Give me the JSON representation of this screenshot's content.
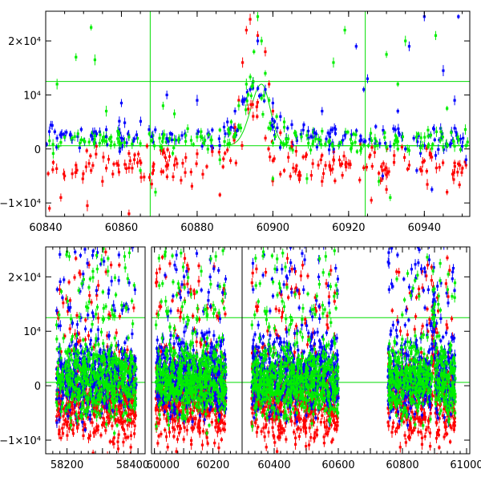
{
  "colors": {
    "red": "#ff0000",
    "green": "#00ee00",
    "blue": "#0000ff",
    "reference": "#00dd00",
    "frame": "#000000"
  },
  "chart_data": [
    {
      "type": "scatter",
      "title": "",
      "xlabel": "",
      "ylabel": "",
      "xlim": [
        60840,
        60952
      ],
      "ylim": [
        -12500,
        25500
      ],
      "x_ticks": [
        60840,
        60860,
        60880,
        60900,
        60920,
        60940
      ],
      "x_tick_labels": [
        "60840",
        "60860",
        "60880",
        "60900",
        "60920",
        "60940"
      ],
      "y_ticks": [
        -10000,
        0,
        10000,
        20000
      ],
      "y_tick_labels": [
        "−1×10⁴",
        "0",
        "10⁴",
        "2×10⁴"
      ],
      "hlines": [
        12500,
        600
      ],
      "vlines": [
        60867.6,
        60924.4
      ],
      "model_curve": {
        "peak_x": 60897,
        "peak_y": 12000,
        "base_y": 600,
        "rise_width": 4,
        "decay_width": 3.2
      },
      "series": [
        {
          "color": "red",
          "points": [
            [
              60842,
              -2500
            ],
            [
              60845,
              -5000
            ],
            [
              60848,
              -3000
            ],
            [
              60852,
              -4000
            ],
            [
              60855,
              -6000
            ],
            [
              60858,
              -2800
            ],
            [
              60862,
              -3500
            ],
            [
              60866,
              -5200
            ],
            [
              60868,
              -6500
            ],
            [
              60871,
              -4200
            ],
            [
              60874,
              -3000
            ],
            [
              60877,
              -1600
            ],
            [
              60880,
              -900
            ],
            [
              60884,
              -500
            ],
            [
              60888,
              -200
            ],
            [
              60890,
              4000
            ],
            [
              60891,
              9000
            ],
            [
              60892,
              16000
            ],
            [
              60893,
              22000
            ],
            [
              60894,
              24000
            ],
            [
              60896,
              21000
            ],
            [
              60898,
              18000
            ],
            [
              60899,
              12000
            ],
            [
              60900,
              7000
            ],
            [
              60902,
              3000
            ],
            [
              60905,
              500
            ],
            [
              60908,
              -1500
            ],
            [
              60912,
              -3000
            ],
            [
              60916,
              -2000
            ],
            [
              60920,
              -2800
            ],
            [
              60924,
              -3500
            ],
            [
              60928,
              -4500
            ],
            [
              60932,
              -2500
            ],
            [
              60936,
              -3000
            ],
            [
              60940,
              -2200
            ],
            [
              60944,
              -3400
            ],
            [
              60948,
              -2600
            ],
            [
              60951,
              -3000
            ],
            [
              60844,
              -9000
            ],
            [
              60851,
              -10500
            ],
            [
              60862,
              -12000
            ],
            [
              60886,
              -8500
            ],
            [
              60903,
              -4000
            ],
            [
              60926,
              -9500
            ],
            [
              60930,
              -7500
            ],
            [
              60946,
              -8000
            ],
            [
              60841,
              -11000
            ],
            [
              60913,
              -6000
            ]
          ]
        },
        {
          "color": "blue",
          "points": [
            [
              60843,
              2000
            ],
            [
              60847,
              1800
            ],
            [
              60852,
              2500
            ],
            [
              60856,
              2200
            ],
            [
              60860,
              2000
            ],
            [
              60864,
              2600
            ],
            [
              60868,
              2300
            ],
            [
              60872,
              1900
            ],
            [
              60876,
              2500
            ],
            [
              60880,
              2800
            ],
            [
              60884,
              3500
            ],
            [
              60888,
              5000
            ],
            [
              60890,
              7000
            ],
            [
              60892,
              9000
            ],
            [
              60894,
              11000
            ],
            [
              60896,
              20000
            ],
            [
              60898,
              11000
            ],
            [
              60900,
              8500
            ],
            [
              60902,
              6000
            ],
            [
              60905,
              4500
            ],
            [
              60908,
              3500
            ],
            [
              60911,
              3000
            ],
            [
              60915,
              2800
            ],
            [
              60919,
              2500
            ],
            [
              60923,
              1500
            ],
            [
              60927,
              1000
            ],
            [
              60931,
              500
            ],
            [
              60935,
              0
            ],
            [
              60939,
              -800
            ],
            [
              60943,
              -1200
            ],
            [
              60947,
              1000
            ],
            [
              60950,
              500
            ],
            [
              60940,
              24500
            ],
            [
              60936,
              19000
            ],
            [
              60945,
              14500
            ],
            [
              60948,
              9000
            ],
            [
              60933,
              7000
            ],
            [
              60949,
              24500
            ],
            [
              60922,
              19000
            ],
            [
              60913,
              7000
            ],
            [
              60860,
              8500
            ],
            [
              60880,
              9000
            ],
            [
              60872,
              10000
            ],
            [
              60925,
              13000
            ],
            [
              60924,
              11000
            ],
            [
              60938,
              -4000
            ],
            [
              60942,
              -7500
            ],
            [
              60929,
              -5000
            ],
            [
              60951,
              -2000
            ]
          ]
        },
        {
          "color": "green",
          "points": [
            [
              60841,
              1500
            ],
            [
              60844,
              1200
            ],
            [
              60847,
              2000
            ],
            [
              60850,
              1600
            ],
            [
              60853,
              2400
            ],
            [
              60856,
              1400
            ],
            [
              60859,
              1900
            ],
            [
              60862,
              2200
            ],
            [
              60865,
              1000
            ],
            [
              60868,
              1500
            ],
            [
              60871,
              2000
            ],
            [
              60874,
              1700
            ],
            [
              60877,
              2500
            ],
            [
              60880,
              2200
            ],
            [
              60883,
              2600
            ],
            [
              60886,
              3500
            ],
            [
              60889,
              5000
            ],
            [
              60891,
              8000
            ],
            [
              60893,
              12000
            ],
            [
              60895,
              18000
            ],
            [
              60896,
              24500
            ],
            [
              60897,
              20000
            ],
            [
              60898,
              14000
            ],
            [
              60899,
              9000
            ],
            [
              60901,
              6000
            ],
            [
              60903,
              4000
            ],
            [
              60906,
              3000
            ],
            [
              60909,
              2500
            ],
            [
              60912,
              1800
            ],
            [
              60915,
              1500
            ],
            [
              60918,
              1200
            ],
            [
              60921,
              1000
            ],
            [
              60924,
              700
            ],
            [
              60927,
              500
            ],
            [
              60930,
              300
            ],
            [
              60933,
              0
            ],
            [
              60936,
              -300
            ],
            [
              60939,
              200
            ],
            [
              60942,
              100
            ],
            [
              60945,
              300
            ],
            [
              60948,
              500
            ],
            [
              60951,
              600
            ],
            [
              60852,
              22500
            ],
            [
              60848,
              17000
            ],
            [
              60853,
              16500
            ],
            [
              60843,
              12000
            ],
            [
              60856,
              7000
            ],
            [
              60871,
              8000
            ],
            [
              60874,
              6500
            ],
            [
              60865,
              -4000
            ],
            [
              60869,
              -8000
            ],
            [
              60900,
              -5500
            ],
            [
              60903,
              5000
            ],
            [
              60909,
              -5500
            ],
            [
              60916,
              16000
            ],
            [
              60919,
              22000
            ],
            [
              60930,
              17500
            ],
            [
              60933,
              12000
            ],
            [
              60935,
              20000
            ],
            [
              60943,
              21000
            ],
            [
              60946,
              7500
            ],
            [
              60928,
              -6000
            ],
            [
              60931,
              -9000
            ],
            [
              60886,
              -2000
            ]
          ]
        }
      ]
    },
    {
      "type": "scatter",
      "title": "",
      "xlabel": "",
      "ylabel": "",
      "ylim": [
        -12500,
        25500
      ],
      "panels": [
        {
          "xlim": [
            58140,
            58420
          ],
          "x_ticks": [
            58200,
            58300,
            58400
          ],
          "x_tick_labels": [
            "58200",
            "",
            "58400"
          ]
        },
        {
          "xlim": [
            59990,
            60300
          ],
          "x_ticks": [
            60000,
            60100,
            60200
          ],
          "x_tick_labels": [
            "60000",
            "",
            "60200"
          ]
        },
        {
          "xlim": [
            60300,
            61010
          ],
          "x_ticks": [
            60400,
            60500,
            60600,
            60700,
            60800,
            60900,
            61000
          ],
          "x_tick_labels": [
            "60400",
            "",
            "60600",
            "",
            "60800",
            "",
            "61000"
          ]
        }
      ],
      "y_ticks": [
        -10000,
        0,
        10000,
        20000
      ],
      "y_tick_labels": [
        "−1×10⁴",
        "0",
        "10⁴",
        "2×10⁴"
      ],
      "hlines": [
        12500,
        600
      ],
      "segments": [
        {
          "x_range": [
            58170,
            58395
          ],
          "peak": 0
        },
        {
          "x_range": [
            60005,
            60245
          ],
          "peak": 0
        },
        {
          "x_range": [
            60330,
            60600
          ],
          "peak": 0
        },
        {
          "x_range": [
            60755,
            60965
          ],
          "peak": 60897
        }
      ]
    }
  ]
}
